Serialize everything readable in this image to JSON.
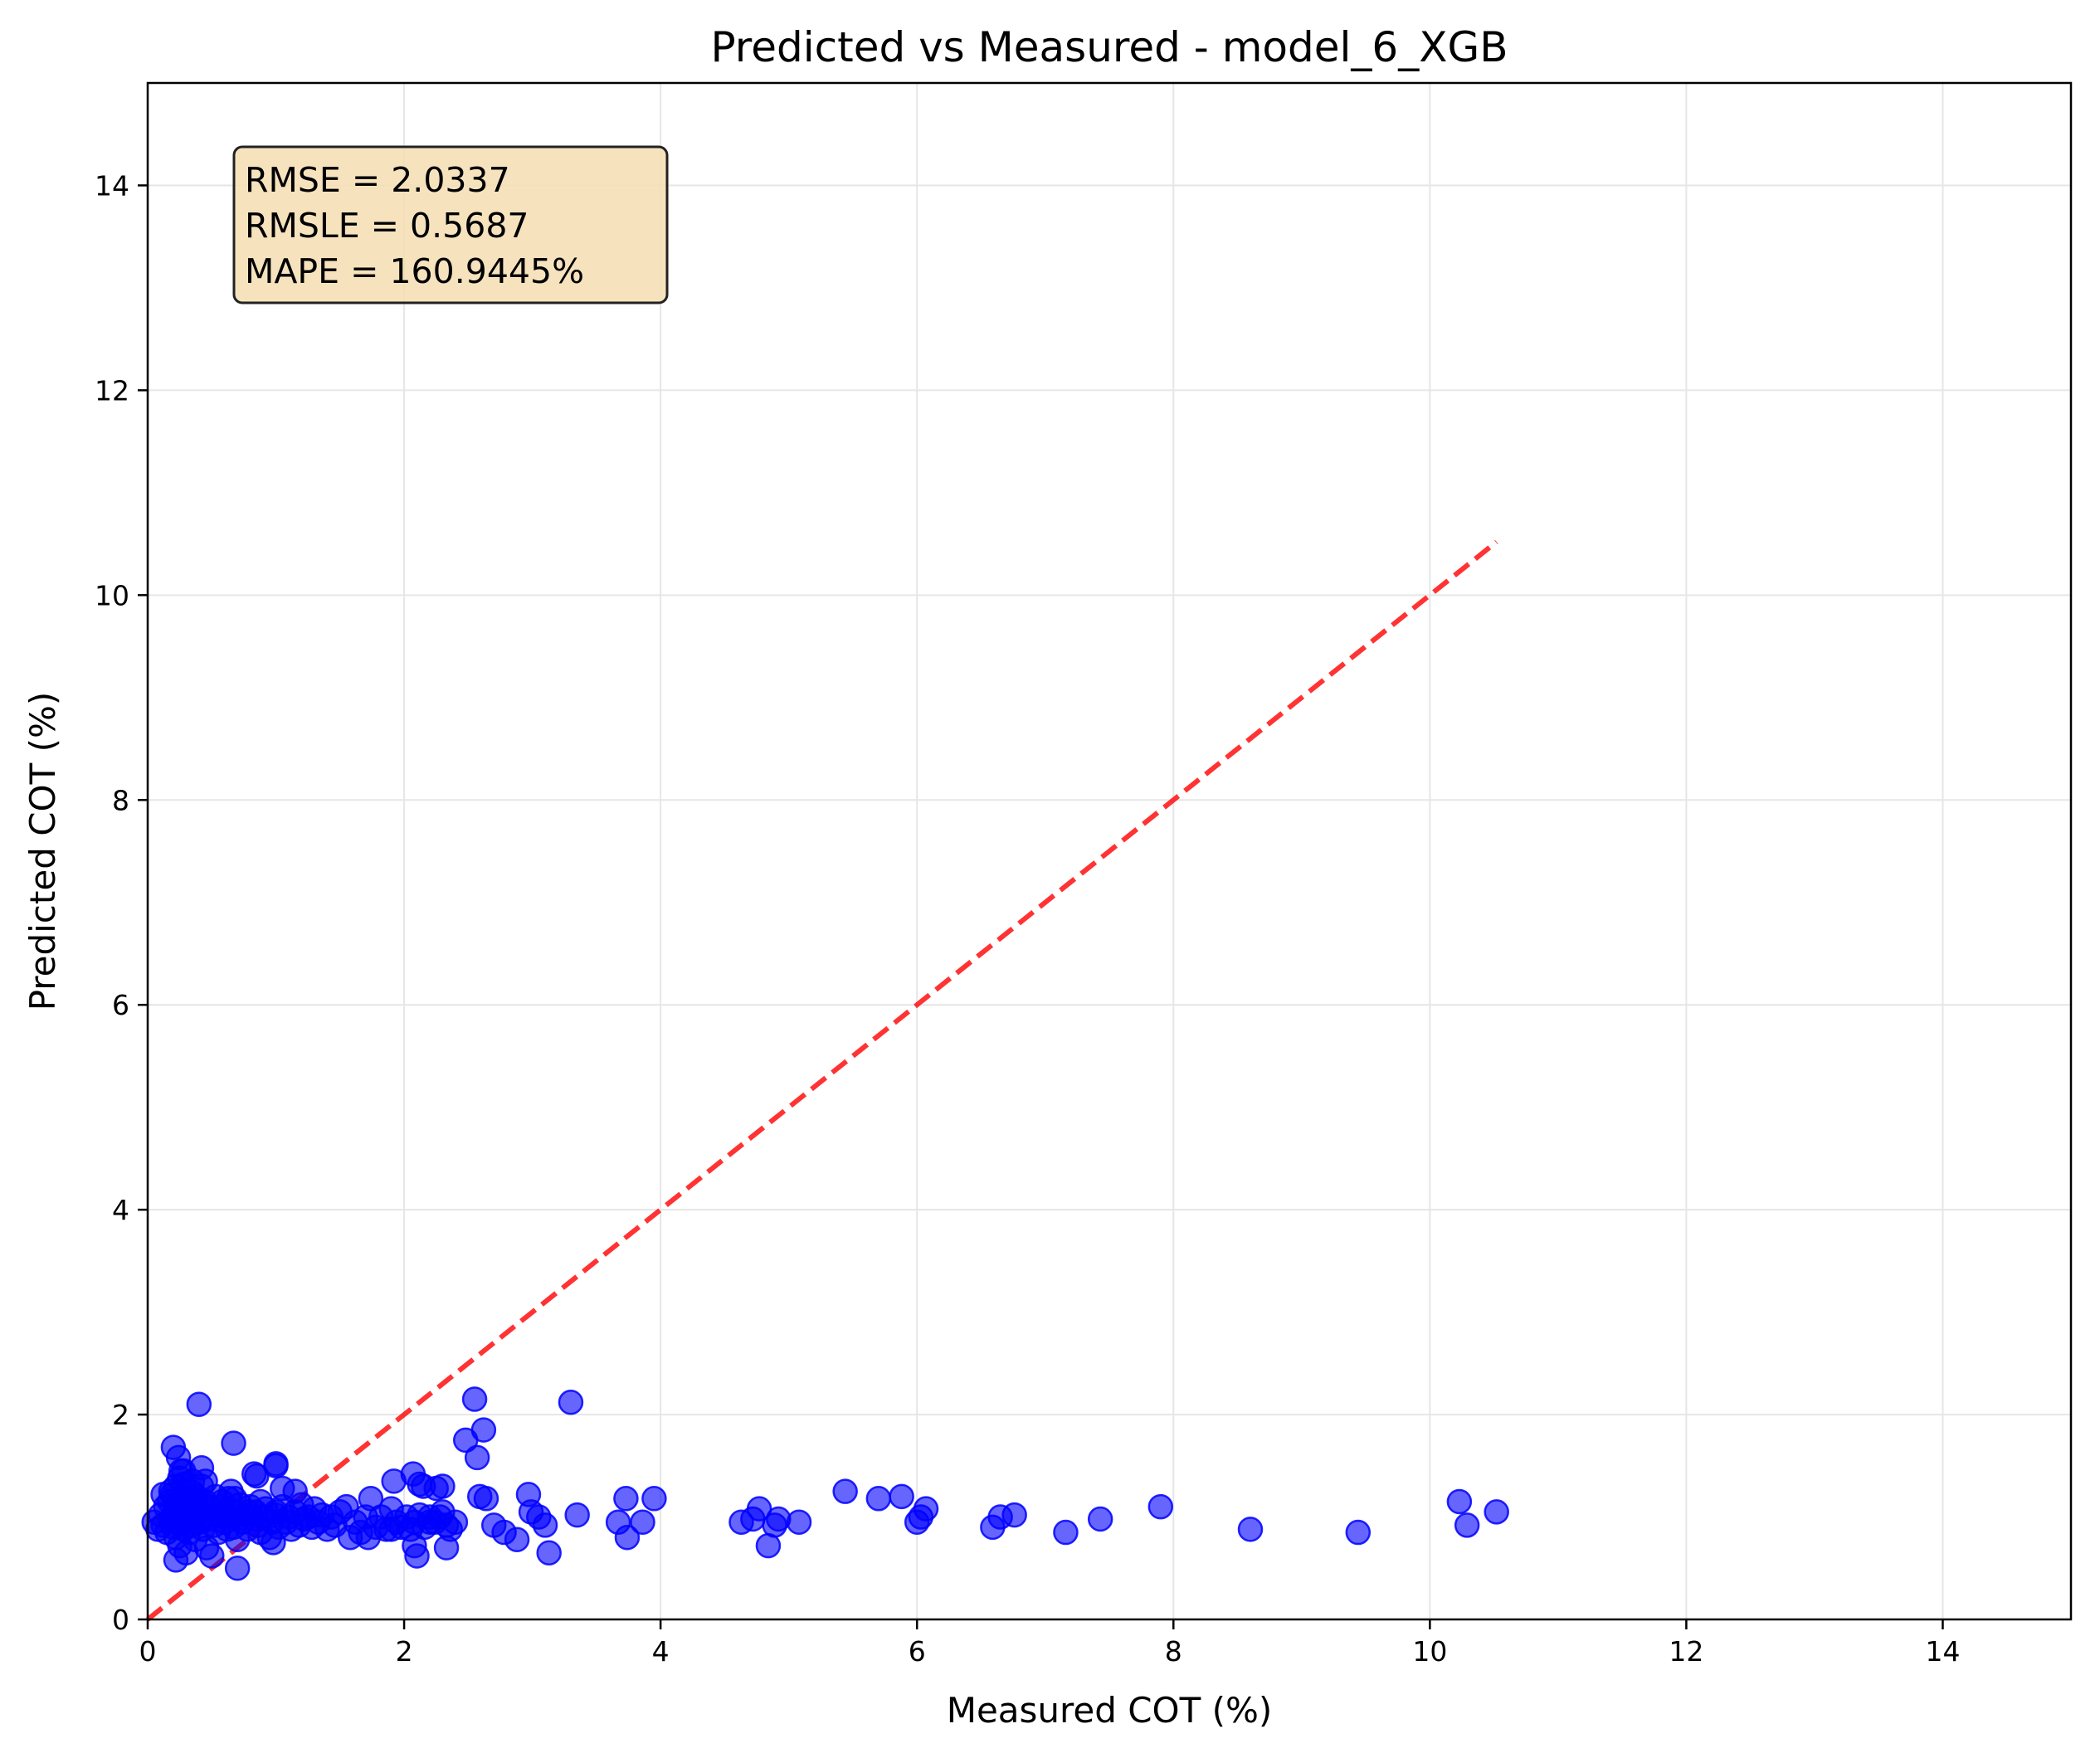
{
  "chart_data": {
    "type": "scatter",
    "title": "Predicted vs Measured - model_6_XGB",
    "xlabel": "Measured COT (%)",
    "ylabel": "Predicted COT (%)",
    "xlim": [
      0,
      15
    ],
    "ylim": [
      0,
      15
    ],
    "xticks": [
      0,
      2,
      4,
      6,
      8,
      10,
      12,
      14
    ],
    "yticks": [
      0,
      2,
      4,
      6,
      8,
      10,
      12,
      14
    ],
    "grid": true,
    "colors": {
      "points": "#0000ff",
      "reference_line": "#ff0000",
      "stats_box_fill": "#f5deb3",
      "grid": "#e6e6e6"
    },
    "reference_line": {
      "x": [
        0,
        10.52
      ],
      "y": [
        0,
        10.52
      ],
      "style": "dashed"
    },
    "stats": [
      "RMSE = 2.0337",
      "RMSLE = 0.5687",
      "MAPE = 160.9445%"
    ],
    "series": [
      {
        "x": [
          0.05,
          0.08,
          0.1,
          0.12,
          0.14,
          0.15,
          0.17,
          0.18,
          0.19,
          0.2,
          0.21,
          0.22,
          0.22,
          0.23,
          0.24,
          0.25,
          0.25,
          0.26,
          0.27,
          0.28,
          0.28,
          0.29,
          0.3,
          0.31,
          0.32,
          0.33,
          0.34,
          0.35,
          0.36,
          0.37,
          0.38,
          0.4,
          0.41,
          0.42,
          0.43,
          0.44,
          0.45,
          0.46,
          0.48,
          0.5,
          0.52,
          0.53,
          0.55,
          0.57,
          0.58,
          0.6,
          0.62,
          0.63,
          0.65,
          0.67,
          0.68,
          0.7,
          0.72,
          0.74,
          0.75,
          0.78,
          0.8,
          0.82,
          0.84,
          0.86,
          0.88,
          0.9,
          0.92,
          0.95,
          0.97,
          1.0,
          1.02,
          1.05,
          1.08,
          1.1,
          1.12,
          1.15,
          1.18,
          1.2,
          1.22,
          1.25,
          1.28,
          1.3,
          1.33,
          1.36,
          1.4,
          1.43,
          1.46,
          1.5,
          1.55,
          1.58,
          1.62,
          1.66,
          1.7,
          1.74,
          1.78,
          1.82,
          1.86,
          1.9,
          1.94,
          1.98,
          2.02,
          2.05,
          2.08,
          2.12,
          2.16,
          2.2,
          2.24,
          2.28,
          2.3,
          2.33,
          2.36,
          2.4,
          0.2,
          0.22,
          0.24,
          0.26,
          0.3,
          0.35,
          0.42,
          0.5,
          0.65,
          0.7,
          0.85,
          1.0,
          0.12,
          0.18,
          0.28,
          0.38,
          0.48,
          0.58,
          0.68,
          0.78,
          0.88,
          0.98,
          0.4,
          0.67,
          1.0,
          0.22,
          0.45,
          0.83,
          1.05,
          1.15,
          1.92,
          2.07,
          2.12,
          2.15,
          2.2,
          2.25,
          2.3,
          2.33,
          2.48,
          2.55,
          2.57,
          2.59,
          2.62,
          2.64,
          2.7,
          2.78,
          2.88,
          2.97,
          2.99,
          3.05,
          3.1,
          3.13,
          3.3,
          3.35,
          3.67,
          3.73,
          3.74,
          3.86,
          3.95,
          4.63,
          4.72,
          4.77,
          4.84,
          4.89,
          4.92,
          5.08,
          5.44,
          5.7,
          5.88,
          6.0,
          6.03,
          6.07,
          6.59,
          6.65,
          6.76,
          7.16,
          7.43,
          7.9,
          8.6,
          9.44,
          10.23,
          10.29,
          10.52,
          1.0,
          0.6,
          2.08,
          2.1,
          1.9,
          1.72
        ],
        "y": [
          0.95,
          0.88,
          1.02,
          0.92,
          1.1,
          0.85,
          1.15,
          0.98,
          1.22,
          0.9,
          1.05,
          1.3,
          0.8,
          1.12,
          0.95,
          1.38,
          0.72,
          1.0,
          1.2,
          0.88,
          1.45,
          1.02,
          0.95,
          1.18,
          0.85,
          1.08,
          1.25,
          0.92,
          1.0,
          0.78,
          1.12,
          1.05,
          0.95,
          1.3,
          0.88,
          1.0,
          1.15,
          0.7,
          0.98,
          1.08,
          0.92,
          1.2,
          0.85,
          1.02,
          1.1,
          0.95,
          0.88,
          1.18,
          1.0,
          0.9,
          1.05,
          0.78,
          1.12,
          0.95,
          1.02,
          0.88,
          1.1,
          0.98,
          1.05,
          0.92,
          0.85,
          1.0,
          1.08,
          0.8,
          0.95,
          1.02,
          0.9,
          1.1,
          0.95,
          1.0,
          0.88,
          1.05,
          0.92,
          1.12,
          0.98,
          1.0,
          0.9,
          1.08,
          0.95,
          1.02,
          0.88,
          1.0,
          0.92,
          1.05,
          1.1,
          0.8,
          0.95,
          0.85,
          1.0,
          1.18,
          0.9,
          1.0,
          0.88,
          1.08,
          0.95,
          0.9,
          1.0,
          0.88,
          0.95,
          1.02,
          0.9,
          1.0,
          0.95,
          1.0,
          1.05,
          0.92,
          0.88,
          0.95,
          1.68,
          0.58,
          1.58,
          1.45,
          0.65,
          1.35,
          1.48,
          0.62,
          1.25,
          0.5,
          1.4,
          1.5,
          1.22,
          1.25,
          1.32,
          1.2,
          1.1,
          1.15,
          1.18,
          1.05,
          1.15,
          0.75,
          2.1,
          1.72,
          1.52,
          1.12,
          1.35,
          1.42,
          1.28,
          1.25,
          1.35,
          1.42,
          1.32,
          1.3,
          0.95,
          1.28,
          1.3,
          0.7,
          1.75,
          2.15,
          1.58,
          1.2,
          1.85,
          1.18,
          0.92,
          0.85,
          0.78,
          1.22,
          1.05,
          1.0,
          0.92,
          0.65,
          2.12,
          1.02,
          0.95,
          1.18,
          0.8,
          0.95,
          1.18,
          0.95,
          0.98,
          1.08,
          0.72,
          0.92,
          0.98,
          0.95,
          1.25,
          1.18,
          1.2,
          0.95,
          1.0,
          1.08,
          0.9,
          1.0,
          1.02,
          0.85,
          0.98,
          1.1,
          0.88,
          0.85,
          1.15,
          0.92,
          1.05,
          1.05,
          1.0,
          0.72,
          0.62,
          0.88,
          0.8
        ]
      }
    ]
  }
}
